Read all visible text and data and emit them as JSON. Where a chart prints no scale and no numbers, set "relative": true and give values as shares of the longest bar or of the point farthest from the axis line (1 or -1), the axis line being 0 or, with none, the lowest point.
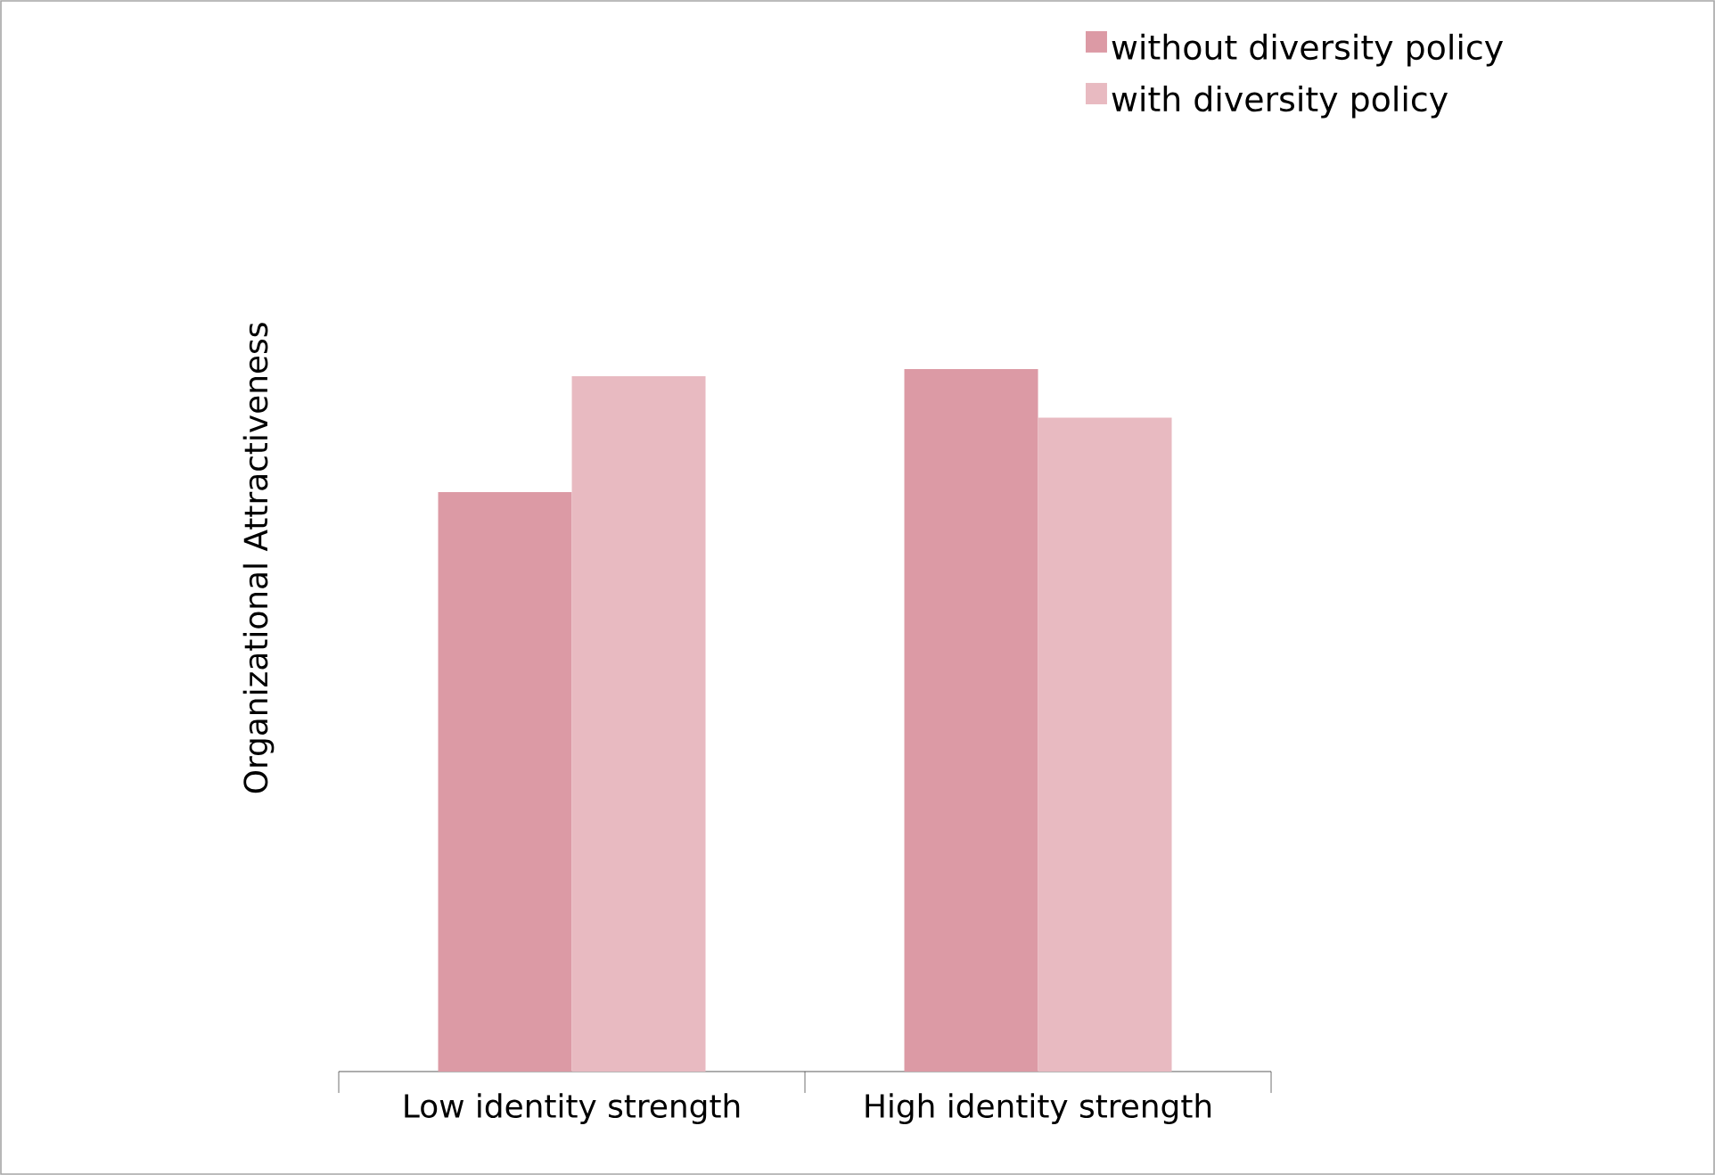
{
  "chart_data": {
    "type": "bar",
    "relative": true,
    "ylabel": "Organizational  Attractiveness",
    "categories": [
      "Low identity strength",
      "High identity strength"
    ],
    "series": [
      {
        "name": "without diversity policy",
        "color": "#dc9aa5",
        "values": [
          0.825,
          1
        ]
      },
      {
        "name": "with diversity policy",
        "color": "#e8bac1",
        "values": [
          0.99,
          0.931
        ]
      }
    ],
    "legend": "top right"
  }
}
